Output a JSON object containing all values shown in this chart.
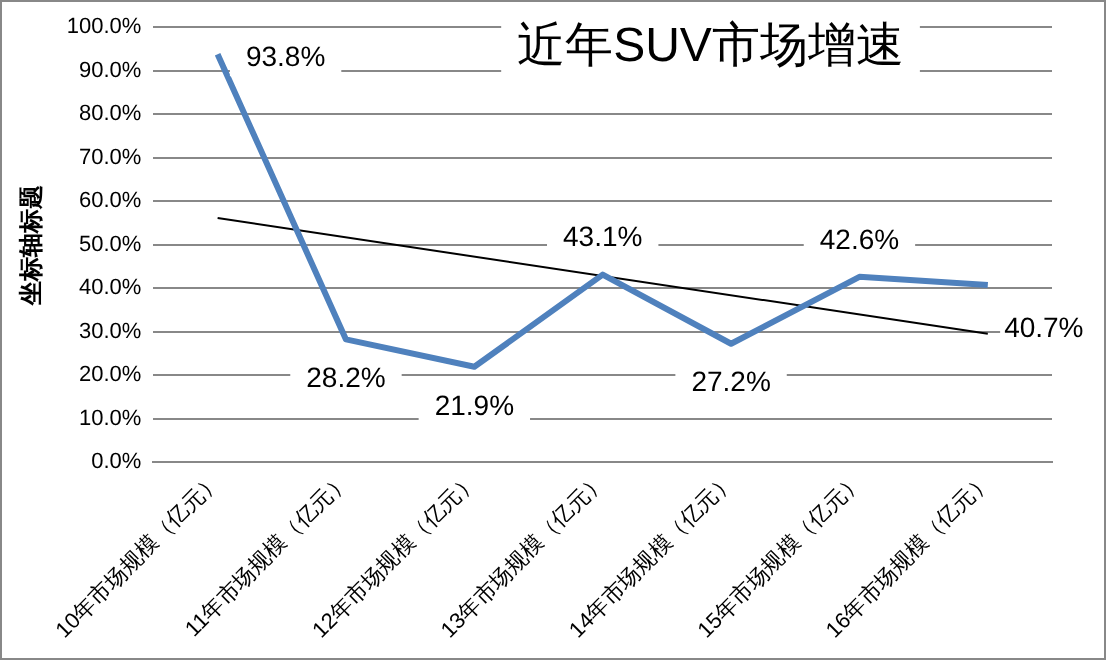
{
  "chart_data": {
    "type": "line",
    "title": "近年SUV市场增速",
    "ylabel": "坐标轴标题",
    "categories": [
      "10年市场规模（亿元）",
      "11年市场规模（亿元）",
      "12年市场规模（亿元）",
      "13年市场规模（亿元）",
      "14年市场规模（亿元）",
      "15年市场规模（亿元）",
      "16年市场规模（亿元）"
    ],
    "series": [
      {
        "color": "#4f81bd",
        "values": [
          93.8,
          28.2,
          21.9,
          43.1,
          27.2,
          42.6,
          40.7
        ],
        "value_labels": [
          "93.8%",
          "28.2%",
          "21.9%",
          "43.1%",
          "27.2%",
          "42.6%",
          "40.7%"
        ]
      },
      {
        "type": "line",
        "color": "#000000",
        "x": [
          "10年市场规模（亿元）",
          "16年市场规模（亿元）"
        ],
        "values": [
          56.1,
          29.5
        ]
      }
    ],
    "ylim": [
      0,
      100
    ],
    "yticks": [
      {
        "value": 0,
        "label": "0.0%"
      },
      {
        "value": 10,
        "label": "10.0%"
      },
      {
        "value": 20,
        "label": "20.0%"
      },
      {
        "value": 30,
        "label": "30.0%"
      },
      {
        "value": 40,
        "label": "40.0%"
      },
      {
        "value": 50,
        "label": "50.0%"
      },
      {
        "value": 60,
        "label": "60.0%"
      },
      {
        "value": 70,
        "label": "70.0%"
      },
      {
        "value": 80,
        "label": "80.0%"
      },
      {
        "value": 90,
        "label": "90.0%"
      },
      {
        "value": 100,
        "label": "100.0%"
      }
    ],
    "grid": "y",
    "legend": false,
    "marker": "none",
    "line_style": "solid"
  }
}
